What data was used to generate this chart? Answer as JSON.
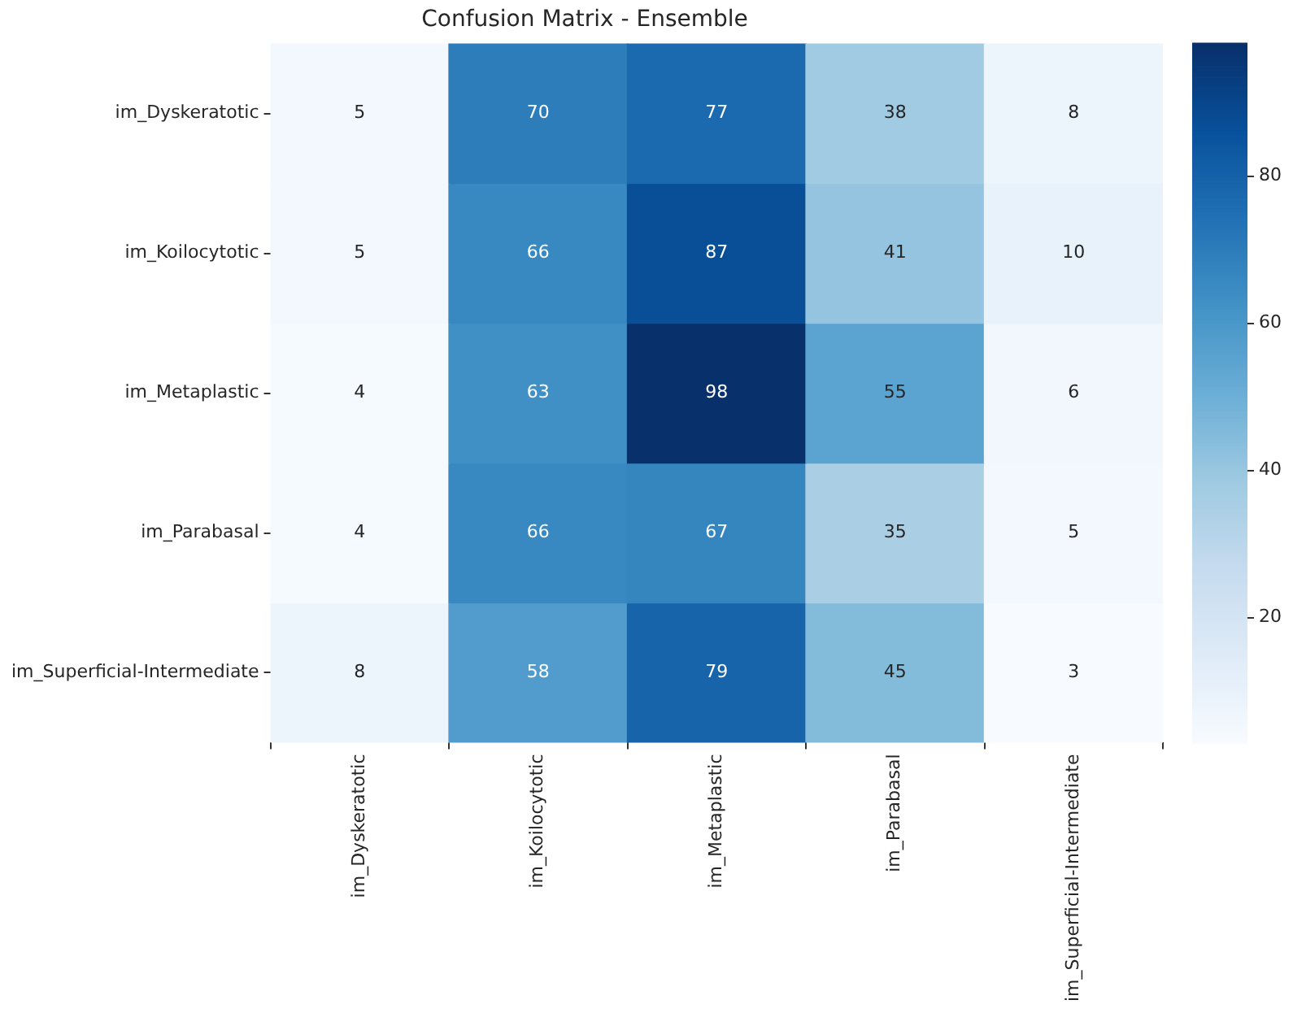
{
  "chart_data": {
    "type": "heatmap",
    "title": "Confusion Matrix - Ensemble",
    "categories": [
      "im_Dyskeratotic",
      "im_Koilocytotic",
      "im_Metaplastic",
      "im_Parabasal",
      "im_Superficial-Intermediate"
    ],
    "y_categories": [
      "im_Dyskeratotic",
      "im_Koilocytotic",
      "im_Metaplastic",
      "im_Parabasal",
      "im_Superficial-Intermediate"
    ],
    "cells": [
      [
        5,
        70,
        77,
        38,
        8
      ],
      [
        5,
        66,
        87,
        41,
        10
      ],
      [
        4,
        63,
        98,
        55,
        6
      ],
      [
        4,
        66,
        67,
        35,
        5
      ],
      [
        8,
        58,
        79,
        45,
        3
      ]
    ],
    "data_labels": true,
    "clim": [
      3,
      98
    ],
    "cticks": [
      20,
      40,
      60,
      80
    ]
  }
}
